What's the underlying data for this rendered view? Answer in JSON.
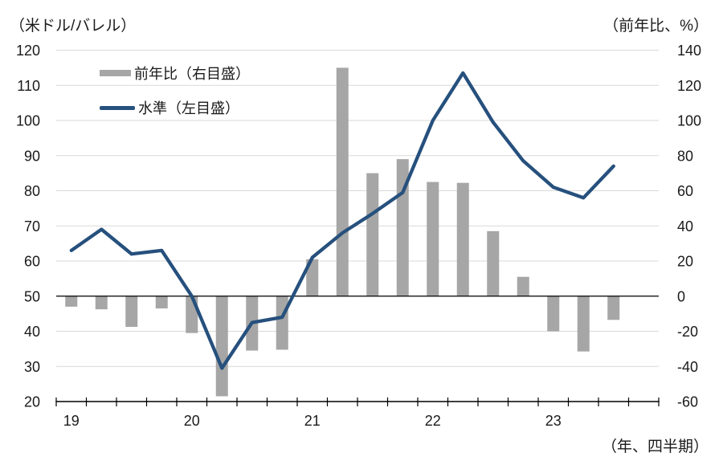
{
  "titles": {
    "left_axis_unit": "（米ドル/バレル）",
    "right_axis_unit": "（前年比、%）",
    "x_axis_note": "（年、四半期）"
  },
  "legend": [
    {
      "label": "前年比（右目盛）",
      "series": "yoy-bars"
    },
    {
      "label": "水準（左目盛）",
      "series": "level-line"
    }
  ],
  "colors": {
    "bar": "#a6a6a6",
    "line": "#26507d",
    "grid": "#d9d9d9",
    "axis": "#000000",
    "text": "#1a1a1a"
  },
  "chart_data": {
    "type": "combo (bar + line, dual axis)",
    "categories": [
      "19Q1",
      "19Q2",
      "19Q3",
      "19Q4",
      "20Q1",
      "20Q2",
      "20Q3",
      "20Q4",
      "21Q1",
      "21Q2",
      "21Q3",
      "21Q4",
      "22Q1",
      "22Q2",
      "22Q3",
      "22Q4",
      "23Q1",
      "23Q2",
      "23Q3"
    ],
    "series": [
      {
        "name": "前年比（右目盛）",
        "type": "bar",
        "axis": "right",
        "unit": "%",
        "values": [
          -6,
          -7.5,
          -17.5,
          -7,
          -21,
          -57,
          -31,
          -30.5,
          21,
          130,
          70,
          78,
          65,
          64.5,
          37,
          11,
          -20,
          -31.5,
          -13.5
        ]
      },
      {
        "name": "水準（左目盛）",
        "type": "line",
        "axis": "left",
        "unit": "米ドル/バレル",
        "values": [
          63,
          69,
          62,
          63,
          50,
          29.5,
          42.5,
          44,
          61,
          68,
          73.5,
          79.5,
          100,
          113.5,
          99.5,
          88.5,
          81,
          78,
          87
        ]
      }
    ],
    "left_axis": {
      "label": "（米ドル/バレル）",
      "min": 20,
      "max": 120,
      "ticks": [
        120,
        110,
        100,
        90,
        80,
        70,
        60,
        50,
        40,
        30,
        20
      ]
    },
    "right_axis": {
      "label": "（前年比、%）",
      "min": -60,
      "max": 140,
      "ticks": [
        140,
        120,
        100,
        80,
        60,
        40,
        20,
        0,
        -20,
        -40,
        -60
      ]
    },
    "x_year_labels": [
      "19",
      "20",
      "21",
      "22",
      "23"
    ],
    "x_label_note": "（年、四半期）",
    "n_slots": 20,
    "grid": true,
    "legend_position": "top-left-inside",
    "zero_line": true
  }
}
